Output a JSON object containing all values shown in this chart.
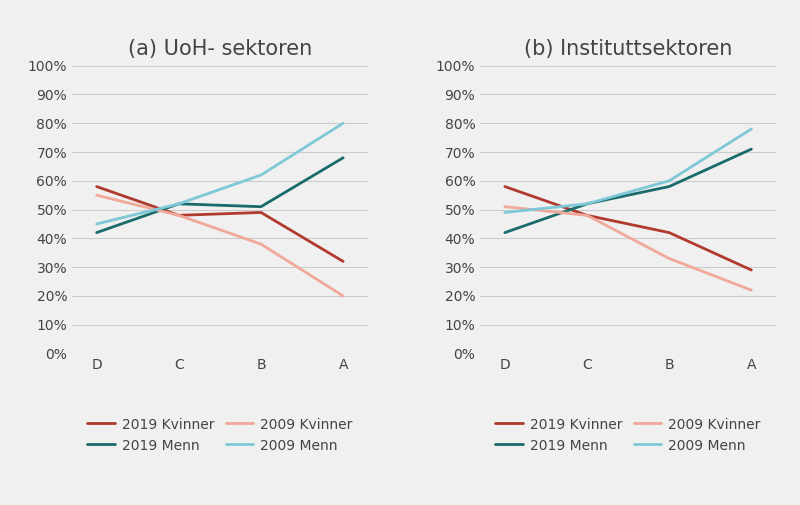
{
  "panels": [
    {
      "title": "(a) UoH- sektoren",
      "categories": [
        "D",
        "C",
        "B",
        "A"
      ],
      "series": {
        "2019 Kvinner": [
          0.58,
          0.48,
          0.49,
          0.32
        ],
        "2019 Menn": [
          0.42,
          0.52,
          0.51,
          0.68
        ],
        "2009 Kvinner": [
          0.55,
          0.48,
          0.38,
          0.2
        ],
        "2009 Menn": [
          0.45,
          0.52,
          0.62,
          0.8
        ]
      }
    },
    {
      "title": "(b) Instituttsektoren",
      "categories": [
        "D",
        "C",
        "B",
        "A"
      ],
      "series": {
        "2019 Kvinner": [
          0.58,
          0.48,
          0.42,
          0.29
        ],
        "2019 Menn": [
          0.42,
          0.52,
          0.58,
          0.71
        ],
        "2009 Kvinner": [
          0.51,
          0.48,
          0.33,
          0.22
        ],
        "2009 Menn": [
          0.49,
          0.52,
          0.6,
          0.78
        ]
      }
    }
  ],
  "series_styles": {
    "2019 Kvinner": {
      "color": "#b03a2e",
      "linewidth": 2.0
    },
    "2019 Menn": {
      "color": "#1a6b6b",
      "linewidth": 2.0
    },
    "2009 Kvinner": {
      "color": "#f0a899",
      "linewidth": 2.0
    },
    "2009 Menn": {
      "color": "#7ec8d8",
      "linewidth": 2.0
    }
  },
  "legend_order": [
    "2019 Kvinner",
    "2019 Menn",
    "2009 Kvinner",
    "2009 Menn"
  ],
  "ylim": [
    0,
    1.0
  ],
  "yticks": [
    0.0,
    0.1,
    0.2,
    0.3,
    0.4,
    0.5,
    0.6,
    0.7,
    0.8,
    0.9,
    1.0
  ],
  "background_color": "#f0f0f0",
  "plot_bg_color": "#f0f0f0",
  "title_fontsize": 15,
  "tick_fontsize": 10,
  "legend_fontsize": 10,
  "text_color": "#444444"
}
